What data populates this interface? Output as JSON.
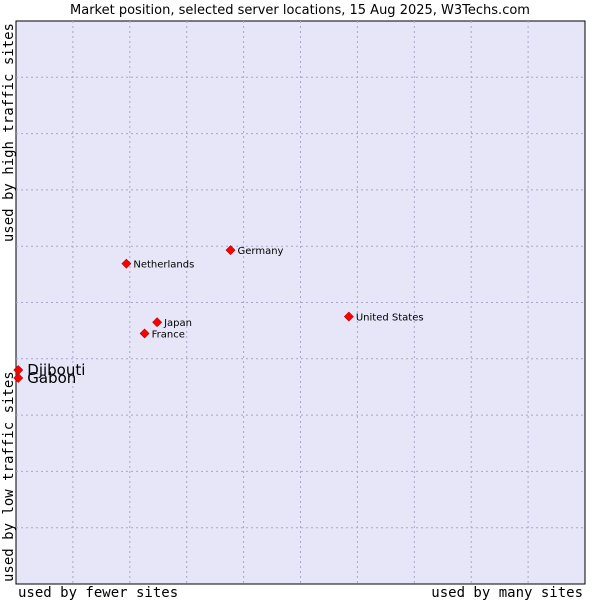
{
  "chart_data": {
    "type": "scatter",
    "title": "Market position, selected server locations, 15 Aug 2025, W3Techs.com",
    "xlabel_low": "used by fewer sites",
    "xlabel_high": "used by many sites",
    "ylabel_low": "used by low traffic sites",
    "ylabel_high": "used by high traffic sites",
    "xlim": [
      0,
      10
    ],
    "ylim": [
      0,
      10
    ],
    "grid": true,
    "background": "#e6e6f8",
    "grid_color": "#a8a8c8",
    "point_color": "#ff0000",
    "points": [
      {
        "label": "Germany",
        "x": 3.77,
        "y": 5.93,
        "size": "small"
      },
      {
        "label": "Netherlands",
        "x": 1.94,
        "y": 5.69,
        "size": "small"
      },
      {
        "label": "United States",
        "x": 5.85,
        "y": 4.75,
        "size": "small"
      },
      {
        "label": "Japan",
        "x": 2.48,
        "y": 4.65,
        "size": "small"
      },
      {
        "label": "France",
        "x": 2.26,
        "y": 4.45,
        "size": "small"
      },
      {
        "label": "Djibouti",
        "x": 0.04,
        "y": 3.8,
        "size": "big"
      },
      {
        "label": "Gabon",
        "x": 0.04,
        "y": 3.66,
        "size": "big"
      }
    ]
  }
}
